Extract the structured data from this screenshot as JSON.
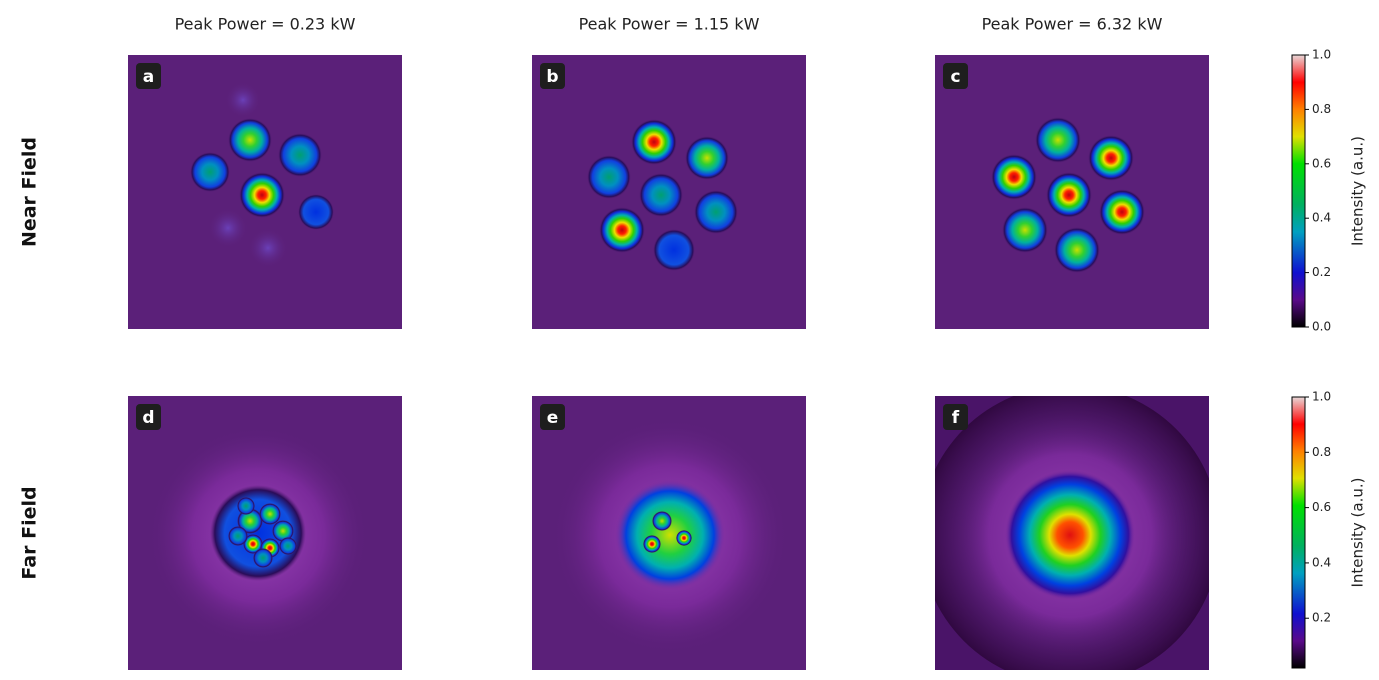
{
  "column_titles": [
    "Peak Power = 0.23 kW",
    "Peak Power = 1.15 kW",
    "Peak Power = 6.32 kW"
  ],
  "row_labels": [
    "Near Field",
    "Far Field"
  ],
  "panels": [
    "a",
    "b",
    "c",
    "d",
    "e",
    "f"
  ],
  "colorbars": [
    {
      "label": "Intensity (a.u.)",
      "lim": [
        0,
        1
      ],
      "ticks": [
        {
          "value": 0,
          "label": "0.0"
        },
        0.2,
        0.4,
        0.6,
        0.8,
        {
          "value": 1,
          "label": "1.0"
        }
      ]
    },
    {
      "label": "Intensity (a.u.)",
      "lim": [
        0.02,
        1
      ],
      "ticks": [
        0.2,
        0.4,
        0.6,
        0.8,
        {
          "value": 1,
          "label": "1.0"
        }
      ]
    }
  ]
}
